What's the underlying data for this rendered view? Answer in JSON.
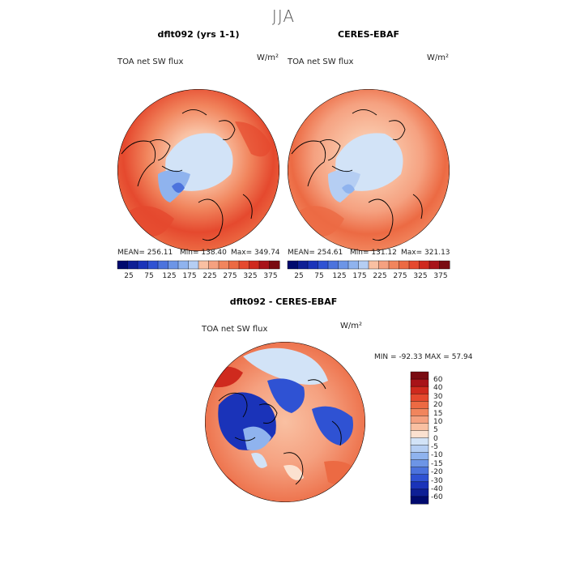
{
  "season": "JJA",
  "colors": {
    "warm": [
      "#fbe1d0",
      "#f9c0a2",
      "#f5a180",
      "#f1855d",
      "#ec6a43",
      "#e5492e",
      "#cf2a1e",
      "#a81319",
      "#7a0c12"
    ],
    "cool": [
      "#d2e3f7",
      "#b5cef3",
      "#8fb3ee",
      "#6d95e6",
      "#4c73dd",
      "#2f52d3",
      "#1a33b9",
      "#0e1f95",
      "#000a6e"
    ],
    "land": "#000000"
  },
  "chart_data": [
    {
      "type": "polar_map",
      "title": "dflt092 (yrs 1-1)",
      "variable": "TOA net SW flux",
      "units": "W/m²",
      "stats": {
        "mean": "256.11",
        "min": "138.40",
        "max": "349.74"
      },
      "colorbar_ticks": [
        "25",
        "75",
        "125",
        "175",
        "225",
        "275",
        "325",
        "375"
      ],
      "colorbar_levels": 16
    },
    {
      "type": "polar_map",
      "title": "CERES-EBAF",
      "variable": "TOA net SW flux",
      "units": "W/m²",
      "stats": {
        "mean": "254.61",
        "min": "131.12",
        "max": "321.13"
      },
      "colorbar_ticks": [
        "25",
        "75",
        "125",
        "175",
        "225",
        "275",
        "325",
        "375"
      ],
      "colorbar_levels": 16
    },
    {
      "type": "polar_map_difference",
      "title": "dflt092 - CERES-EBAF",
      "variable": "TOA net SW flux",
      "units": "W/m²",
      "stats": {
        "min": "-92.33",
        "max": "57.94"
      },
      "colorbar_ticks": [
        "60",
        "40",
        "30",
        "20",
        "15",
        "10",
        "5",
        "0",
        "-5",
        "-10",
        "-15",
        "-20",
        "-30",
        "-40",
        "-60"
      ]
    }
  ],
  "labels": {
    "mean": "MEAN=",
    "min": "Min=",
    "max": "Max=",
    "diff_min": "MIN =",
    "diff_max": "MAX ="
  }
}
